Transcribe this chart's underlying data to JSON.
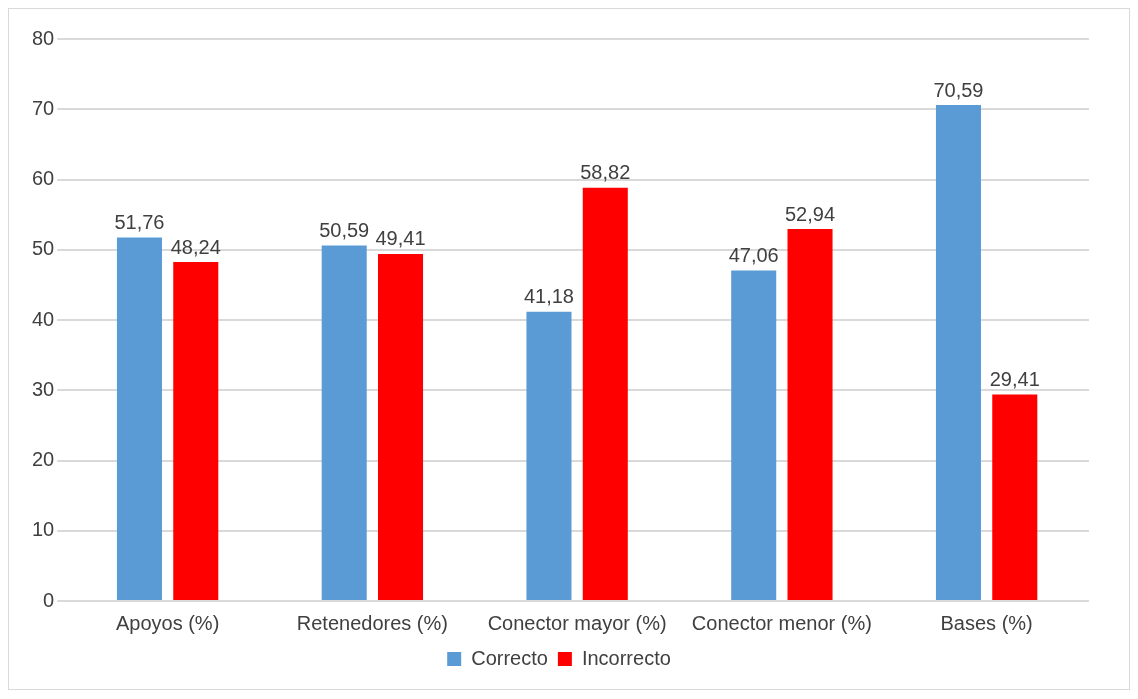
{
  "chart_data": {
    "type": "bar",
    "categories": [
      "Apoyos (%)",
      "Retenedores (%)",
      "Conector mayor (%)",
      "Conector menor (%)",
      "Bases (%)"
    ],
    "series": [
      {
        "name": "Correcto",
        "color": "#5b9bd5",
        "values": [
          51.76,
          50.59,
          41.18,
          47.06,
          70.59
        ],
        "value_labels": [
          "51,76",
          "50,59",
          "41,18",
          "47,06",
          "70,59"
        ]
      },
      {
        "name": "Incorrecto",
        "color": "#ff0000",
        "values": [
          48.24,
          49.41,
          58.82,
          52.94,
          29.41
        ],
        "value_labels": [
          "48,24",
          "49,41",
          "58,82",
          "52,94",
          "29,41"
        ]
      }
    ],
    "ylim": [
      0,
      80
    ],
    "yticks": [
      0,
      10,
      20,
      30,
      40,
      50,
      60,
      70,
      80
    ],
    "grid": "y",
    "legend": "bottom"
  }
}
